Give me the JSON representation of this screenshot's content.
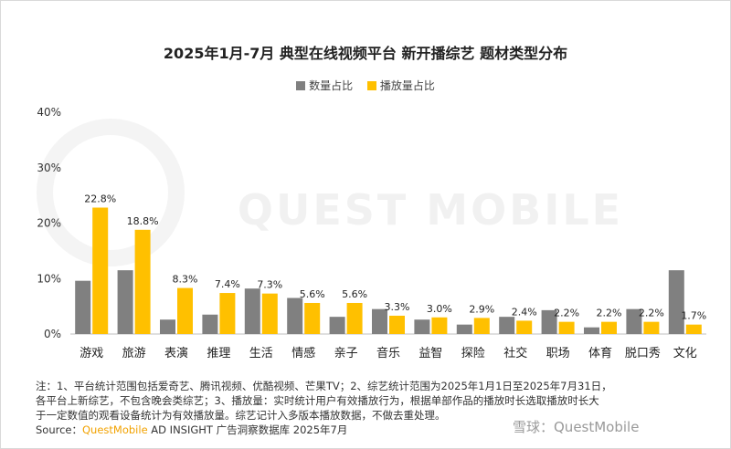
{
  "title": "2025年1月-7月 典型在线视频平台 新开播综艺 题材类型分布",
  "colors": {
    "count": "#808080",
    "play": "#ffc000",
    "axis": "#bfbfbf",
    "text": "#333333",
    "brand": "#f2a200"
  },
  "legend": [
    {
      "label": "数量占比",
      "color": "#808080"
    },
    {
      "label": "播放量占比",
      "color": "#ffc000"
    }
  ],
  "chart_data": {
    "type": "bar",
    "title": "2025年1月-7月 典型在线视频平台 新开播综艺 题材类型分布",
    "categories": [
      "游戏",
      "旅游",
      "表演",
      "推理",
      "生活",
      "情感",
      "亲子",
      "音乐",
      "益智",
      "探险",
      "社交",
      "职场",
      "体育",
      "脱口秀",
      "文化"
    ],
    "series": [
      {
        "name": "数量占比",
        "values": [
          9.6,
          11.5,
          2.6,
          3.5,
          8.2,
          6.5,
          3.1,
          4.5,
          2.6,
          1.7,
          3.1,
          4.3,
          1.2,
          4.5,
          11.5
        ]
      },
      {
        "name": "播放量占比",
        "values": [
          22.8,
          18.8,
          8.3,
          7.4,
          7.3,
          5.6,
          5.6,
          3.3,
          3.0,
          2.9,
          2.4,
          2.2,
          2.2,
          2.2,
          1.7
        ]
      }
    ],
    "data_labels": [
      "22.8%",
      "18.8%",
      "8.3%",
      "7.4%",
      "7.3%",
      "5.6%",
      "5.6%",
      "3.3%",
      "3.0%",
      "2.9%",
      "2.4%",
      "2.2%",
      "2.2%",
      "2.2%",
      "1.7%"
    ],
    "yticks": [
      "0%",
      "10%",
      "20%",
      "30%",
      "40%"
    ],
    "ylim": [
      0,
      40
    ],
    "grid": false,
    "legend_position": "top-center"
  },
  "watermark": "QUEST MOBILE",
  "notes": {
    "line1": "注：1、平台统计范围包括爱奇艺、腾讯视频、优酷视频、芒果TV；2、综艺统计范围为2025年1月1日至2025年7月31日，",
    "line2": "各平台上新综艺，不包含晚会类综艺；3、播放量：实时统计用户有效播放行为，根据单部作品的播放时长选取播放时长大",
    "line3": "于一定数值的观看设备统计为有效播放量。综艺记计入多版本播放数据，不做去重处理。",
    "source_prefix": "Source：",
    "source_brand": "QuestMobile",
    "source_rest": " AD INSIGHT 广告洞察数据库 2025年7月"
  },
  "corner_logo": "雪球：QuestMobile"
}
